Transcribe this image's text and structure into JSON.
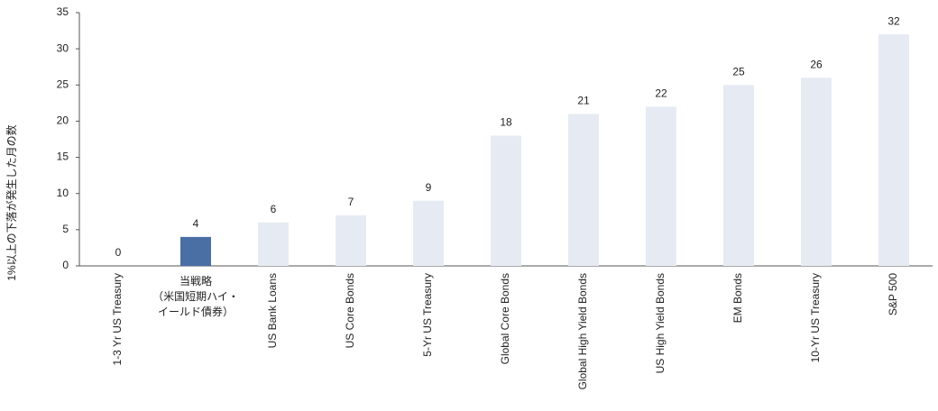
{
  "chart_data": {
    "type": "bar",
    "y_label": "1%以上の下落が発生した月の数",
    "categories": [
      "1-3 Yr US Treasury",
      "当戦略\n（米国短期ハイ・\nイールド債券）",
      "US Bank Loans",
      "US Core Bonds",
      "5-Yr US Treasury",
      "Global Core Bonds",
      "Global High Yield Bonds",
      "US High Yield Bonds",
      "EM Bonds",
      "10-Yr US Treasury",
      "S&P 500"
    ],
    "values": [
      0,
      4,
      6,
      7,
      9,
      18,
      21,
      22,
      25,
      26,
      32
    ],
    "colors": [
      "#e6ebf3",
      "#4a6fa5",
      "#e6ebf3",
      "#e6ebf3",
      "#e6ebf3",
      "#e6ebf3",
      "#e6ebf3",
      "#e6ebf3",
      "#e6ebf3",
      "#e6ebf3",
      "#e6ebf3"
    ],
    "ylim": [
      0,
      35
    ],
    "yticks": [
      0,
      5,
      10,
      15,
      20,
      25,
      30,
      35
    ],
    "grid": false
  }
}
